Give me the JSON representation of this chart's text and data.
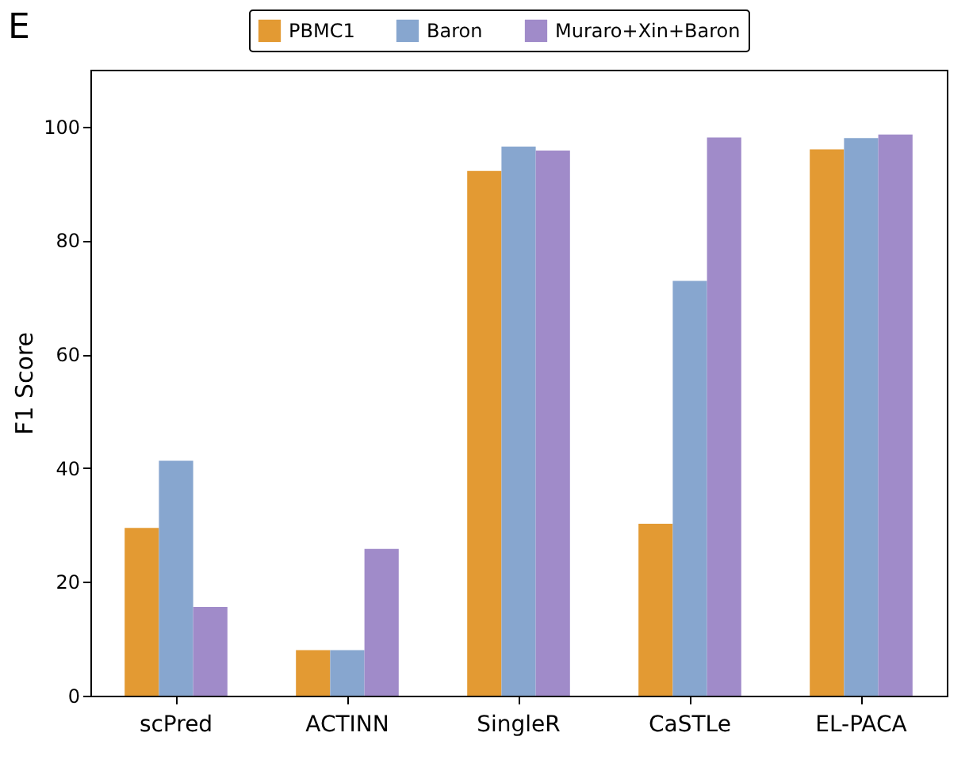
{
  "chart_data": {
    "type": "bar",
    "ylabel": "F1 Score",
    "annotations": [
      "E"
    ],
    "categories": [
      "scPred",
      "ACTINN",
      "SingleR",
      "CaSTLe",
      "EL-PACA"
    ],
    "series": [
      {
        "name": "PBMC1",
        "color": "#e39a33",
        "values": [
          29.5,
          8,
          92.2,
          30.2,
          96
        ]
      },
      {
        "name": "Baron",
        "color": "#87a6cf",
        "values": [
          41.3,
          8,
          96.5,
          72.9,
          98
        ]
      },
      {
        "name": "Muraro+Xin+Baron",
        "color": "#a08bc9",
        "values": [
          15.6,
          25.8,
          95.8,
          98.1,
          98.6
        ]
      }
    ],
    "ylim": [
      0,
      110
    ],
    "yticks": [
      0,
      20,
      40,
      60,
      80,
      100
    ],
    "grid": false,
    "legend": "top"
  }
}
